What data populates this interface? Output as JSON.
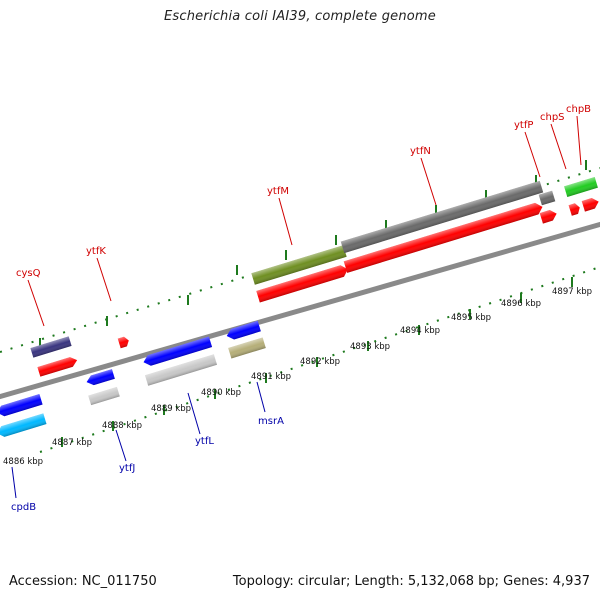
{
  "title": "Escherichia coli IAI39, complete genome",
  "footer": {
    "accession": "Accession: NC_011750",
    "summary": "Topology: circular; Length: 5,132,068 bp; Genes: 4,937"
  },
  "colors": {
    "backbone": "#8a8a8a",
    "tick": "#1e7a1e",
    "label_top": "#d00000",
    "label_bottom": "#0000a8",
    "red": "#ff0000",
    "blue": "#0000ff",
    "navy": "#3a3580",
    "olive": "#6f8f22",
    "gray": "#6a6a6a",
    "lightgray": "#c8c8c8",
    "khaki": "#b5ae78",
    "cyan": "#00b8ff",
    "green": "#22cc22"
  },
  "scale_labels": [
    "4886 kbp",
    "4887 kbp",
    "4888 kbp",
    "4889 kbp",
    "4890 kbp",
    "4891 kbp",
    "4892 kbp",
    "4893 kbp",
    "4894 kbp",
    "4895 kbp",
    "4896 kbp",
    "4897 kbp"
  ],
  "genes_top": [
    "cysQ",
    "ytfK",
    "ytfM",
    "ytfN",
    "ytfP",
    "chpS",
    "chpB"
  ],
  "genes_bottom": [
    "cpdB",
    "ytfJ",
    "ytfL",
    "msrA"
  ]
}
